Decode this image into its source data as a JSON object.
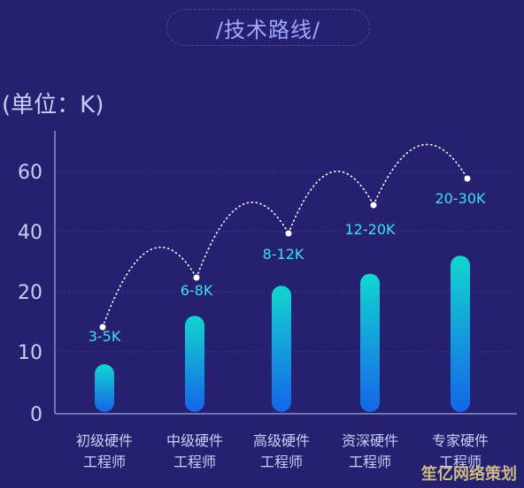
{
  "title": "/技术路线/",
  "unit_label": "(单位：K)",
  "watermark": "笙亿网络策划",
  "colors": {
    "background": "#252170",
    "bar_top": "#12d6d0",
    "bar_bottom": "#1565e8",
    "axis": "#8a8fd0",
    "value_label": "#3fe0e8",
    "tick_label": "#c9cdf5"
  },
  "chart_data": {
    "type": "bar",
    "title": "/技术路线/",
    "ylabel": "(单位：K)",
    "xlabel": "",
    "ylim": [
      0,
      70
    ],
    "yticks": [
      0,
      10,
      20,
      40,
      60
    ],
    "grid": true,
    "categories": [
      [
        "初级硬件",
        "工程师"
      ],
      [
        "中级硬件",
        "工程师"
      ],
      [
        "高级硬件",
        "工程师"
      ],
      [
        "资深硬件",
        "工程师"
      ],
      [
        "专家硬件",
        "工程师"
      ]
    ],
    "values": [
      8,
      16,
      22,
      26,
      32
    ],
    "range_labels": [
      "3-5K",
      "6-8K",
      "8-12K",
      "12-20K",
      "20-30K"
    ]
  }
}
